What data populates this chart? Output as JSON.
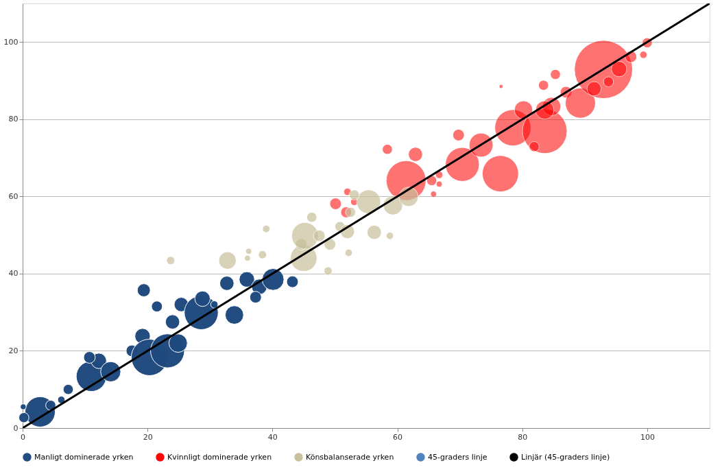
{
  "chart_data": {
    "type": "bubble",
    "xlim": [
      0,
      110
    ],
    "ylim": [
      0,
      110
    ],
    "xticks": [
      0,
      20,
      40,
      60,
      80,
      100
    ],
    "yticks": [
      0,
      20,
      40,
      60,
      80,
      100
    ],
    "grid": "y",
    "legend": "bottom",
    "series": [
      {
        "name": "Manligt dominerade yrken",
        "color": "#1f4a7f",
        "x": [
          2.8,
          0.2,
          0.1,
          4.5,
          6.2,
          7.3,
          11,
          12.2,
          14.1,
          10.7,
          17.5,
          19.2,
          20.3,
          23.2,
          19.4,
          21.5,
          24,
          25.4,
          24.9,
          28.6,
          28.8,
          30.7,
          33.9,
          32.7,
          35.9,
          37.9,
          40.1,
          43.2,
          37.3
        ],
        "values": [
          4.2,
          2.7,
          5.5,
          5.9,
          7.3,
          10,
          13.4,
          17.4,
          14.6,
          18.3,
          20,
          23.8,
          18.3,
          20,
          35.7,
          31.5,
          27.5,
          32,
          22,
          29.9,
          33.5,
          32,
          29.3,
          37.5,
          38.5,
          36.6,
          38.5,
          37.9,
          33.9
        ],
        "sizes": [
          0.27,
          0.03,
          0.01,
          0.03,
          0.016,
          0.03,
          0.27,
          0.07,
          0.12,
          0.04,
          0.04,
          0.07,
          0.39,
          0.34,
          0.05,
          0.035,
          0.06,
          0.06,
          0.1,
          0.34,
          0.07,
          0.016,
          0.1,
          0.06,
          0.07,
          0.07,
          0.14,
          0.04,
          0.04
        ]
      },
      {
        "name": "Kvinnligt dominerade yrken",
        "color": "#ff0000",
        "x": [
          50.1,
          51.8,
          53.1,
          52,
          58.4,
          62.9,
          61.4,
          65.8,
          66.7,
          65.5,
          66.7,
          70.4,
          73.4,
          69.8,
          76.5,
          78.5,
          83.6,
          80.2,
          84.7,
          87,
          85.3,
          83.4,
          89.3,
          93,
          91.5,
          95.5,
          97.4,
          100,
          99.4,
          93.8,
          76.6,
          83.6,
          81.9
        ],
        "values": [
          58.1,
          55.9,
          58.6,
          61.2,
          72.2,
          70.9,
          64.1,
          60.6,
          63.2,
          64.1,
          65.6,
          68.3,
          73.3,
          75.9,
          65.9,
          77.8,
          76.9,
          82.4,
          83.3,
          87,
          91.6,
          88.8,
          84.2,
          92.9,
          87.9,
          93,
          96.2,
          99.8,
          96.7,
          89.7,
          88.5,
          82.4,
          72.9
        ],
        "sizes": [
          0.04,
          0.035,
          0.016,
          0.016,
          0.03,
          0.06,
          0.47,
          0.011,
          0.011,
          0.03,
          0.016,
          0.34,
          0.17,
          0.04,
          0.39,
          0.39,
          0.59,
          0.1,
          0.1,
          0.04,
          0.03,
          0.03,
          0.27,
          1.0,
          0.06,
          0.07,
          0.04,
          0.03,
          0.016,
          0.03,
          0.005,
          0.1,
          0.03
        ]
      },
      {
        "name": "Könsbalanserade yrken",
        "color": "#c8c09c",
        "x": [
          23.7,
          32.8,
          36,
          36.2,
          38.4,
          39,
          45,
          44.6,
          45.2,
          47.5,
          46.3,
          49.2,
          48.9,
          50.8,
          52,
          52.2,
          52.5,
          55.4,
          56.3,
          58.8,
          59.3,
          61.8,
          53.1
        ],
        "values": [
          43.4,
          43.4,
          44,
          45.8,
          44.9,
          51.6,
          44,
          47.6,
          49.8,
          49.8,
          54.6,
          47.6,
          40.7,
          52.2,
          50.9,
          45.4,
          55.9,
          58.6,
          50.7,
          49.8,
          57.7,
          59.9,
          60.4
        ],
        "sizes": [
          0.02,
          0.09,
          0.011,
          0.011,
          0.02,
          0.016,
          0.21,
          0.04,
          0.21,
          0.04,
          0.03,
          0.04,
          0.02,
          0.03,
          0.06,
          0.016,
          0.03,
          0.17,
          0.06,
          0.016,
          0.11,
          0.11,
          0.03
        ]
      },
      {
        "name": "45-graders linje",
        "color": "#4f81bd"
      },
      {
        "name": "Linjär (45-graders linje)",
        "color": "#000000",
        "type": "line",
        "x": [
          0,
          110
        ],
        "values": [
          0,
          110
        ]
      }
    ]
  }
}
